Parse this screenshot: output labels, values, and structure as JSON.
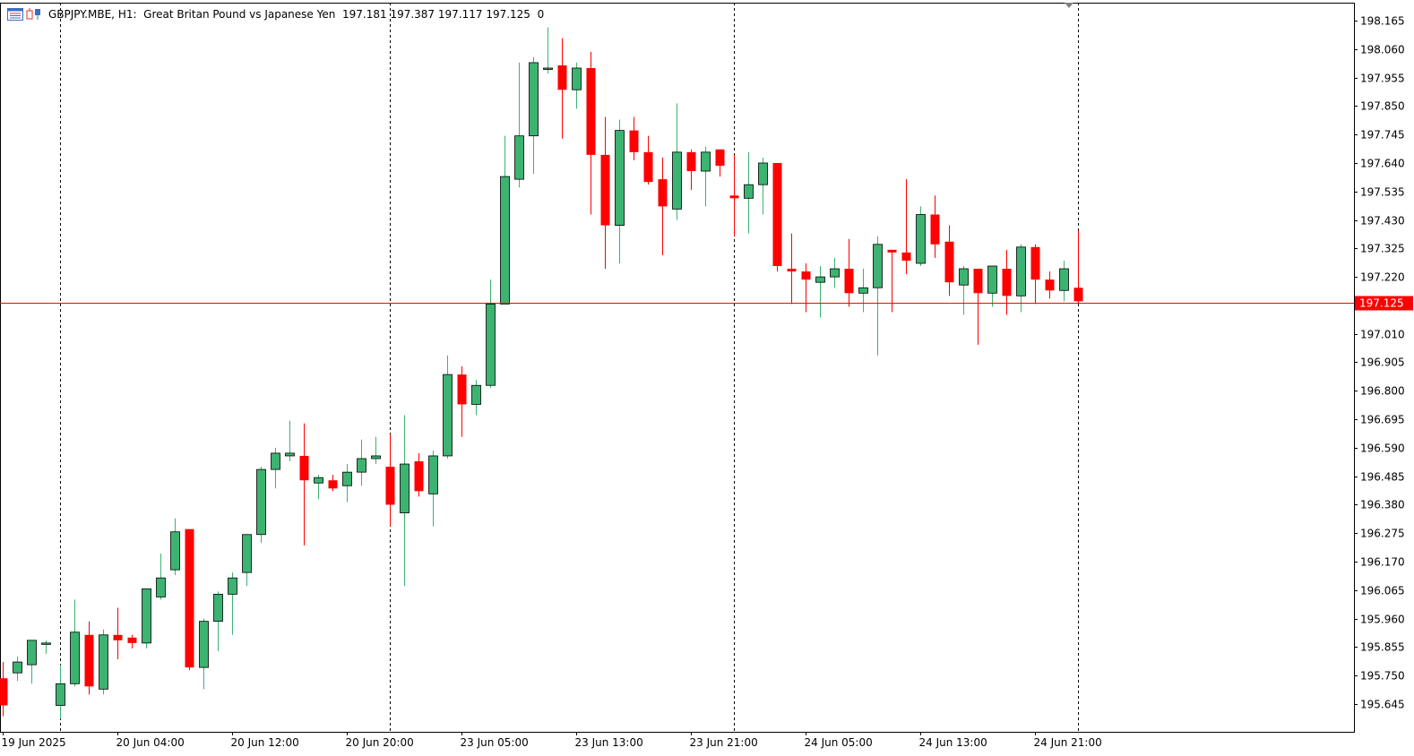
{
  "header": {
    "symbol": "GBPJPY.MBE",
    "timeframe": "H1:",
    "description": "Great Britan Pound vs Japanese Yen",
    "ohlc": "197.181 197.387 197.117 197.125",
    "extra": "0"
  },
  "colors": {
    "bull": "#3cb371",
    "bear": "#ff0000",
    "outline": "#000000",
    "price_line": "#ff0000",
    "price_label_bg": "#ff0000",
    "price_label_text": "#ffffff"
  },
  "icons": [
    "chart-window-icon",
    "candle-type-icon"
  ],
  "chart_data": {
    "type": "candlestick",
    "y_ticks": [
      "198.165",
      "198.060",
      "197.955",
      "197.850",
      "197.745",
      "197.640",
      "197.535",
      "197.430",
      "197.325",
      "197.220",
      "197.010",
      "196.905",
      "196.800",
      "196.695",
      "196.590",
      "196.485",
      "196.380",
      "196.275",
      "196.170",
      "196.065",
      "195.960",
      "195.855",
      "195.750",
      "195.645"
    ],
    "y_range": [
      195.58,
      198.2
    ],
    "last_price_label": "197.125",
    "last_price": 197.125,
    "x_ticks": [
      {
        "label": "19 Jun 2025",
        "bar": 0
      },
      {
        "label": "20 Jun 04:00",
        "bar": 8
      },
      {
        "label": "20 Jun 12:00",
        "bar": 16
      },
      {
        "label": "20 Jun 20:00",
        "bar": 24
      },
      {
        "label": "23 Jun 05:00",
        "bar": 32
      },
      {
        "label": "23 Jun 13:00",
        "bar": 40
      },
      {
        "label": "23 Jun 21:00",
        "bar": 48
      },
      {
        "label": "24 Jun 05:00",
        "bar": 56
      },
      {
        "label": "24 Jun 13:00",
        "bar": 64
      },
      {
        "label": "24 Jun 21:00",
        "bar": 72
      }
    ],
    "period_separators_bars": [
      4,
      27,
      51,
      75
    ],
    "candles": [
      [
        195.74,
        195.8,
        195.6,
        195.64
      ],
      [
        195.76,
        195.82,
        195.73,
        195.8
      ],
      [
        195.79,
        195.88,
        195.72,
        195.88
      ],
      [
        195.87,
        195.88,
        195.83,
        195.87
      ],
      [
        195.64,
        195.79,
        195.59,
        195.72
      ],
      [
        195.72,
        196.03,
        195.71,
        195.91
      ],
      [
        195.9,
        195.95,
        195.68,
        195.71
      ],
      [
        195.7,
        195.92,
        195.68,
        195.9
      ],
      [
        195.9,
        196.0,
        195.81,
        195.88
      ],
      [
        195.89,
        195.9,
        195.85,
        195.87
      ],
      [
        195.87,
        196.07,
        195.85,
        196.07
      ],
      [
        196.04,
        196.2,
        196.03,
        196.11
      ],
      [
        196.14,
        196.33,
        196.12,
        196.28
      ],
      [
        196.29,
        196.29,
        195.77,
        195.78
      ],
      [
        195.78,
        195.96,
        195.7,
        195.95
      ],
      [
        195.95,
        196.06,
        195.84,
        196.05
      ],
      [
        196.05,
        196.13,
        195.9,
        196.11
      ],
      [
        196.13,
        196.27,
        196.08,
        196.27
      ],
      [
        196.27,
        196.52,
        196.24,
        196.51
      ],
      [
        196.51,
        196.59,
        196.44,
        196.57
      ],
      [
        196.56,
        196.69,
        196.54,
        196.57
      ],
      [
        196.56,
        196.68,
        196.23,
        196.47
      ],
      [
        196.46,
        196.49,
        196.4,
        196.48
      ],
      [
        196.47,
        196.49,
        196.43,
        196.44
      ],
      [
        196.45,
        196.53,
        196.39,
        196.5
      ],
      [
        196.5,
        196.62,
        196.45,
        196.55
      ],
      [
        196.55,
        196.63,
        196.53,
        196.56
      ],
      [
        196.52,
        196.64,
        196.3,
        196.38
      ],
      [
        196.35,
        196.71,
        196.08,
        196.53
      ],
      [
        196.54,
        196.57,
        196.41,
        196.43
      ],
      [
        196.42,
        196.58,
        196.3,
        196.56
      ],
      [
        196.56,
        196.93,
        196.55,
        196.86
      ],
      [
        196.86,
        196.89,
        196.63,
        196.75
      ],
      [
        196.75,
        196.84,
        196.71,
        196.82
      ],
      [
        196.82,
        197.21,
        196.81,
        197.12
      ],
      [
        197.12,
        197.74,
        197.12,
        197.59
      ],
      [
        197.58,
        198.01,
        197.55,
        197.74
      ],
      [
        197.74,
        198.03,
        197.6,
        198.01
      ],
      [
        197.99,
        198.14,
        197.97,
        197.99
      ],
      [
        198.0,
        198.1,
        197.73,
        197.91
      ],
      [
        197.91,
        198.01,
        197.84,
        197.99
      ],
      [
        197.99,
        198.05,
        197.45,
        197.67
      ],
      [
        197.67,
        197.81,
        197.25,
        197.41
      ],
      [
        197.41,
        197.8,
        197.27,
        197.76
      ],
      [
        197.76,
        197.81,
        197.65,
        197.68
      ],
      [
        197.68,
        197.74,
        197.56,
        197.57
      ],
      [
        197.58,
        197.66,
        197.3,
        197.48
      ],
      [
        197.47,
        197.86,
        197.43,
        197.68
      ],
      [
        197.68,
        197.69,
        197.54,
        197.61
      ],
      [
        197.61,
        197.7,
        197.48,
        197.68
      ],
      [
        197.69,
        197.69,
        197.59,
        197.63
      ],
      [
        197.52,
        197.67,
        197.37,
        197.51
      ],
      [
        197.51,
        197.68,
        197.38,
        197.56
      ],
      [
        197.56,
        197.66,
        197.45,
        197.64
      ],
      [
        197.64,
        197.64,
        197.24,
        197.26
      ],
      [
        197.25,
        197.38,
        197.12,
        197.24
      ],
      [
        197.24,
        197.27,
        197.09,
        197.21
      ],
      [
        197.2,
        197.26,
        197.07,
        197.22
      ],
      [
        197.22,
        197.29,
        197.18,
        197.25
      ],
      [
        197.25,
        197.36,
        197.11,
        197.16
      ],
      [
        197.16,
        197.25,
        197.09,
        197.18
      ],
      [
        197.18,
        197.37,
        196.93,
        197.34
      ],
      [
        197.32,
        197.32,
        197.09,
        197.31
      ],
      [
        197.31,
        197.58,
        197.23,
        197.28
      ],
      [
        197.27,
        197.48,
        197.26,
        197.45
      ],
      [
        197.45,
        197.52,
        197.29,
        197.34
      ],
      [
        197.35,
        197.41,
        197.15,
        197.2
      ],
      [
        197.19,
        197.26,
        197.08,
        197.25
      ],
      [
        197.25,
        197.25,
        196.97,
        197.16
      ],
      [
        197.16,
        197.26,
        197.11,
        197.26
      ],
      [
        197.25,
        197.32,
        197.08,
        197.15
      ],
      [
        197.15,
        197.34,
        197.09,
        197.33
      ],
      [
        197.33,
        197.34,
        197.12,
        197.21
      ],
      [
        197.21,
        197.24,
        197.14,
        197.17
      ],
      [
        197.17,
        197.28,
        197.13,
        197.25
      ],
      [
        197.18,
        197.39,
        197.12,
        197.13
      ]
    ]
  }
}
